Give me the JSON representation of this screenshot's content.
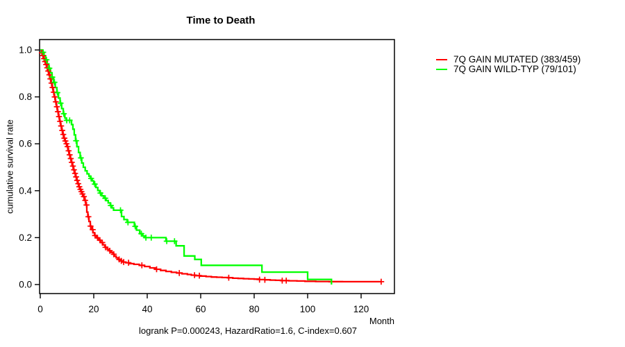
{
  "chart_data": {
    "type": "line",
    "variant": "kaplan-meier-step",
    "title": "Time to Death",
    "xlabel": "Month",
    "ylabel": "cumulative survival rate",
    "footer": "logrank P=0.000243, HazardRatio=1.6, C-index=0.607",
    "x_ticks": [
      0,
      20,
      40,
      60,
      80,
      100,
      120
    ],
    "y_ticks": [
      0.0,
      0.2,
      0.4,
      0.6,
      0.8,
      1.0
    ],
    "xlim": [
      0,
      132
    ],
    "ylim": [
      0,
      1.04
    ],
    "grid": false,
    "legend_position": "right",
    "axis_color": "#000000",
    "background": "#ffffff",
    "series": [
      {
        "key": "7q-gain-mutated",
        "name": "7Q GAIN MUTATED (383/459)",
        "color": "#ff0000",
        "events": 383,
        "total": 459,
        "steps": [
          [
            0,
            1.0
          ],
          [
            0.4,
            0.988
          ],
          [
            0.8,
            0.976
          ],
          [
            1.2,
            0.963
          ],
          [
            1.6,
            0.951
          ],
          [
            2,
            0.938
          ],
          [
            2.4,
            0.924
          ],
          [
            2.8,
            0.91
          ],
          [
            3.2,
            0.894
          ],
          [
            3.6,
            0.877
          ],
          [
            4,
            0.859
          ],
          [
            4.4,
            0.84
          ],
          [
            4.8,
            0.82
          ],
          [
            5.2,
            0.8
          ],
          [
            5.6,
            0.779
          ],
          [
            6,
            0.758
          ],
          [
            6.4,
            0.737
          ],
          [
            6.8,
            0.716
          ],
          [
            7.2,
            0.696
          ],
          [
            7.6,
            0.676
          ],
          [
            8,
            0.657
          ],
          [
            8.4,
            0.64
          ],
          [
            8.8,
            0.624
          ],
          [
            9.2,
            0.612
          ],
          [
            9.6,
            0.6
          ],
          [
            10,
            0.588
          ],
          [
            10.4,
            0.57
          ],
          [
            10.8,
            0.553
          ],
          [
            11.2,
            0.537
          ],
          [
            11.6,
            0.521
          ],
          [
            12,
            0.505
          ],
          [
            12.4,
            0.489
          ],
          [
            12.8,
            0.474
          ],
          [
            13.2,
            0.459
          ],
          [
            13.6,
            0.444
          ],
          [
            14,
            0.43
          ],
          [
            14.4,
            0.417
          ],
          [
            14.8,
            0.406
          ],
          [
            15.2,
            0.396
          ],
          [
            15.6,
            0.386
          ],
          [
            16,
            0.375
          ],
          [
            16.5,
            0.359
          ],
          [
            17,
            0.339
          ],
          [
            17.4,
            0.309
          ],
          [
            17.8,
            0.289
          ],
          [
            18.2,
            0.269
          ],
          [
            18.7,
            0.249
          ],
          [
            19.2,
            0.234
          ],
          [
            19.7,
            0.221
          ],
          [
            20.3,
            0.209
          ],
          [
            21,
            0.199
          ],
          [
            21.8,
            0.189
          ],
          [
            22.6,
            0.179
          ],
          [
            23.4,
            0.169
          ],
          [
            24.2,
            0.159
          ],
          [
            25,
            0.151
          ],
          [
            25.8,
            0.144
          ],
          [
            26.5,
            0.137
          ],
          [
            27.2,
            0.129
          ],
          [
            27.8,
            0.121
          ],
          [
            28.4,
            0.114
          ],
          [
            29.1,
            0.107
          ],
          [
            30,
            0.101
          ],
          [
            31,
            0.096
          ],
          [
            32,
            0.093
          ],
          [
            33.5,
            0.089
          ],
          [
            35,
            0.086
          ],
          [
            37,
            0.082
          ],
          [
            39,
            0.077
          ],
          [
            41,
            0.071
          ],
          [
            43,
            0.065
          ],
          [
            45,
            0.06
          ],
          [
            47,
            0.056
          ],
          [
            49,
            0.052
          ],
          [
            51,
            0.049
          ],
          [
            53,
            0.046
          ],
          [
            55,
            0.043
          ],
          [
            56.5,
            0.04
          ],
          [
            58,
            0.038
          ],
          [
            60,
            0.036
          ],
          [
            62,
            0.034
          ],
          [
            64,
            0.032
          ],
          [
            66,
            0.031
          ],
          [
            68,
            0.03
          ],
          [
            70,
            0.029
          ],
          [
            72,
            0.027
          ],
          [
            74,
            0.026
          ],
          [
            76,
            0.025
          ],
          [
            78,
            0.024
          ],
          [
            80,
            0.023
          ],
          [
            82,
            0.021
          ],
          [
            84,
            0.02
          ],
          [
            86,
            0.019
          ],
          [
            88,
            0.018
          ],
          [
            90,
            0.017
          ],
          [
            93,
            0.016
          ],
          [
            96,
            0.015
          ],
          [
            99,
            0.014
          ],
          [
            103,
            0.013
          ],
          [
            108,
            0.0125
          ],
          [
            113,
            0.012
          ],
          [
            127.5,
            0.012
          ]
        ],
        "censor_months": [
          0.6,
          1.0,
          1.4,
          1.8,
          2.2,
          2.6,
          3.0,
          3.4,
          3.8,
          4.2,
          4.6,
          5.0,
          5.4,
          5.8,
          6.2,
          6.6,
          7.0,
          7.4,
          7.8,
          8.2,
          8.6,
          9.0,
          9.4,
          9.8,
          10.2,
          10.6,
          11.0,
          11.4,
          11.8,
          12.2,
          12.6,
          13.0,
          13.4,
          13.8,
          14.2,
          14.6,
          15.0,
          15.4,
          15.8,
          16.3,
          16.8,
          17.3,
          18.0,
          18.8,
          19.6,
          20.5,
          21.4,
          22.3,
          23.2,
          24.4,
          26.0,
          27.5,
          29.5,
          30.3,
          31.2,
          33.0,
          38.0,
          43.5,
          52.0,
          57.7,
          59.5,
          70.5,
          82.0,
          84.0,
          90.5,
          92.0,
          127.5
        ]
      },
      {
        "key": "7q-gain-wild-typ",
        "name": "7Q GAIN WILD-TYP (79/101)",
        "color": "#00ff00",
        "events": 79,
        "total": 101,
        "steps": [
          [
            0,
            1.0
          ],
          [
            0.7,
            0.99
          ],
          [
            1.4,
            0.975
          ],
          [
            2,
            0.958
          ],
          [
            2.6,
            0.94
          ],
          [
            3.2,
            0.922
          ],
          [
            3.8,
            0.903
          ],
          [
            4.4,
            0.884
          ],
          [
            5,
            0.862
          ],
          [
            5.6,
            0.84
          ],
          [
            6.2,
            0.818
          ],
          [
            6.8,
            0.795
          ],
          [
            7.4,
            0.773
          ],
          [
            8,
            0.75
          ],
          [
            8.6,
            0.728
          ],
          [
            9.2,
            0.71
          ],
          [
            9.7,
            0.7
          ],
          [
            11.7,
            0.682
          ],
          [
            12.2,
            0.662
          ],
          [
            12.7,
            0.638
          ],
          [
            13.2,
            0.613
          ],
          [
            13.7,
            0.588
          ],
          [
            14.3,
            0.563
          ],
          [
            14.9,
            0.54
          ],
          [
            15.5,
            0.518
          ],
          [
            16.1,
            0.5
          ],
          [
            16.8,
            0.485
          ],
          [
            17.5,
            0.472
          ],
          [
            18.2,
            0.462
          ],
          [
            18.7,
            0.452
          ],
          [
            19.4,
            0.442
          ],
          [
            20,
            0.428
          ],
          [
            20.8,
            0.414
          ],
          [
            21.5,
            0.401
          ],
          [
            22.2,
            0.39
          ],
          [
            23,
            0.378
          ],
          [
            23.8,
            0.368
          ],
          [
            24.6,
            0.358
          ],
          [
            25.4,
            0.348
          ],
          [
            26.2,
            0.337
          ],
          [
            26.8,
            0.327
          ],
          [
            27.4,
            0.317
          ],
          [
            30.4,
            0.29
          ],
          [
            31.3,
            0.277
          ],
          [
            32.5,
            0.265
          ],
          [
            35.2,
            0.248
          ],
          [
            36,
            0.232
          ],
          [
            37.2,
            0.217
          ],
          [
            38.3,
            0.207
          ],
          [
            39,
            0.2
          ],
          [
            47,
            0.185
          ],
          [
            50.8,
            0.165
          ],
          [
            53.8,
            0.122
          ],
          [
            57.8,
            0.107
          ],
          [
            60.2,
            0.082
          ],
          [
            82.9,
            0.053
          ],
          [
            100,
            0.022
          ],
          [
            108.9,
            0.0
          ]
        ],
        "censor_months": [
          1.1,
          2.3,
          3.4,
          4.5,
          5.3,
          6.4,
          7.6,
          8.8,
          9.9,
          11.0,
          13.4,
          15.2,
          19.0,
          20.4,
          22.5,
          24.3,
          26.4,
          30.0,
          32.8,
          35.5,
          37.8,
          39.5,
          41.5,
          47.3,
          50.2
        ]
      }
    ]
  }
}
